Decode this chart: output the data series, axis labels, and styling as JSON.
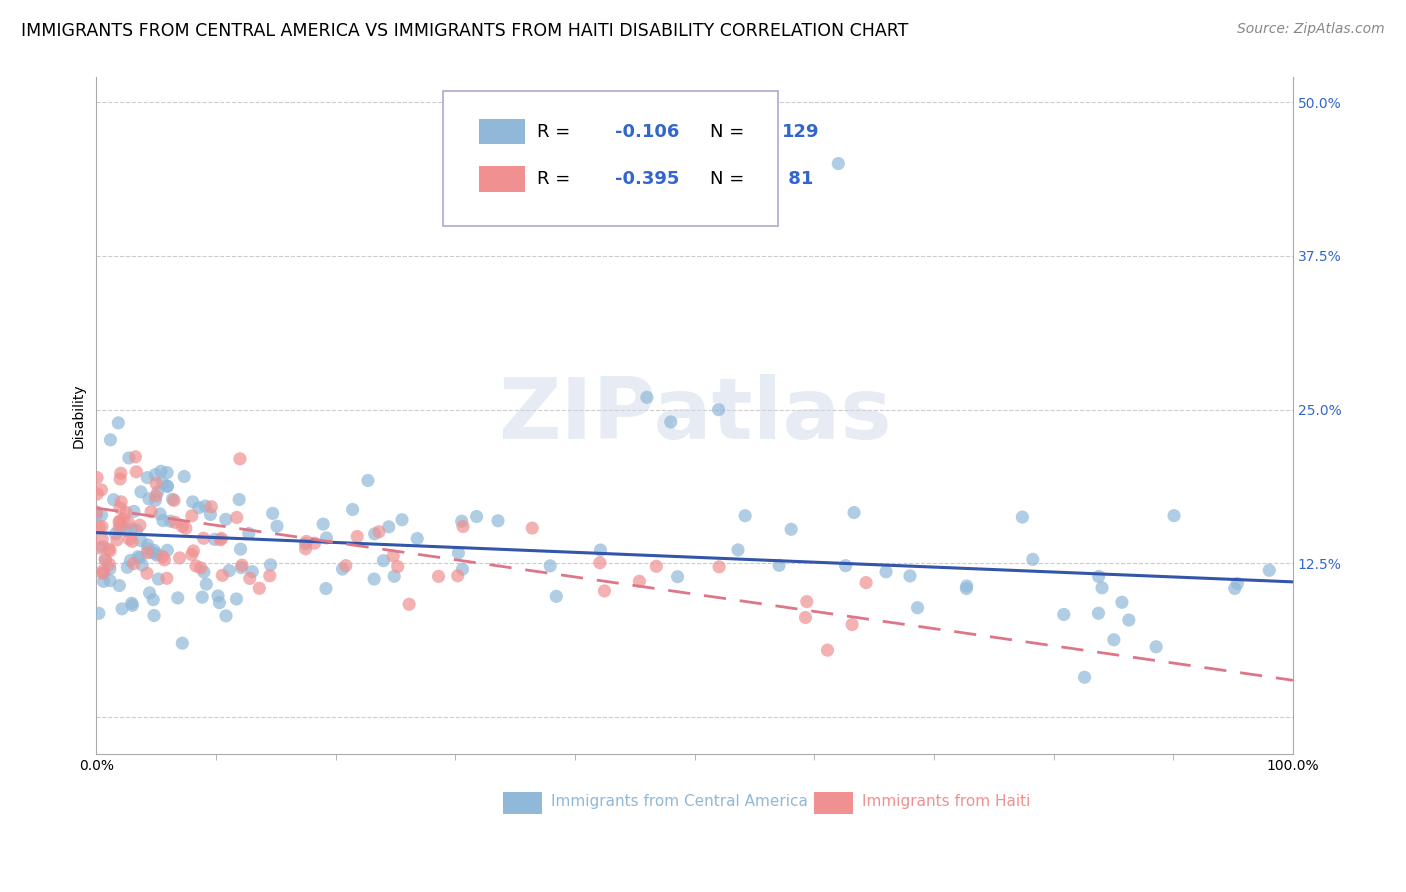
{
  "title": "IMMIGRANTS FROM CENTRAL AMERICA VS IMMIGRANTS FROM HAITI DISABILITY CORRELATION CHART",
  "source": "Source: ZipAtlas.com",
  "ylabel": "Disability",
  "xlim": [
    0,
    100
  ],
  "ylim": [
    -3,
    52
  ],
  "yticks": [
    0,
    12.5,
    25.0,
    37.5,
    50.0
  ],
  "ytick_labels": [
    "",
    "12.5%",
    "25.0%",
    "37.5%",
    "50.0%"
  ],
  "xtick_labels": [
    "0.0%",
    "100.0%"
  ],
  "ca_R": -0.106,
  "ca_N": 129,
  "haiti_R": -0.395,
  "haiti_N": 81,
  "scatter_color_ca": "#90b8d8",
  "scatter_color_haiti": "#f09090",
  "line_color_ca": "#3355aa",
  "line_color_haiti": "#dd7788",
  "background_color": "#ffffff",
  "grid_color": "#cccccc",
  "title_fontsize": 12.5,
  "axis_label_fontsize": 10,
  "tick_label_fontsize": 10,
  "legend_fontsize": 13,
  "source_fontsize": 10,
  "watermark": "ZIPatlas",
  "legend_R_ca": "-0.106",
  "legend_N_ca": "129",
  "legend_R_haiti": "-0.395",
  "legend_N_haiti": "81"
}
